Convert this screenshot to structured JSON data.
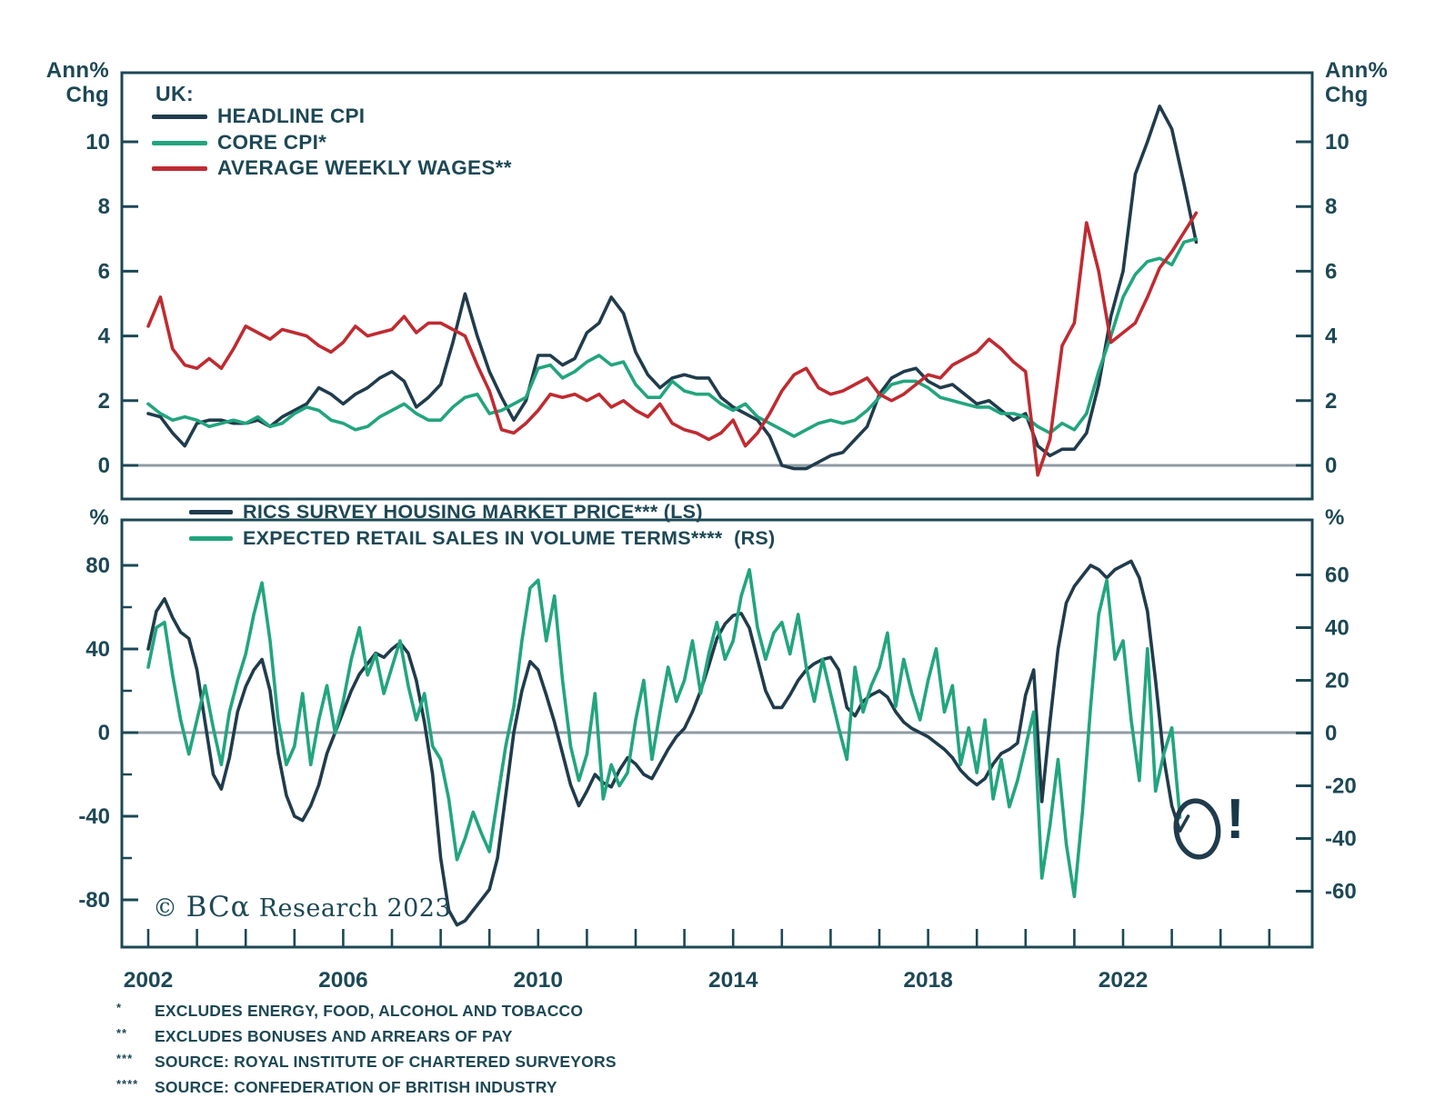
{
  "colors": {
    "text": "#1d4855",
    "navy": "#203c4c",
    "green": "#22a57e",
    "red": "#bf2b31",
    "zero_line": "#8f9ba3",
    "frame": "#1d4855"
  },
  "top_panel": {
    "axis_unit": {
      "line1": "Ann%",
      "line2": "Chg"
    },
    "legend_title": "UK:",
    "legend": [
      {
        "label": "HEADLINE CPI",
        "color_key": "navy"
      },
      {
        "label": "CORE CPI*",
        "color_key": "green"
      },
      {
        "label": "AVERAGE WEEKLY WAGES**",
        "color_key": "red"
      }
    ],
    "y_ticks": [
      10,
      8,
      6,
      4,
      2,
      0
    ]
  },
  "bottom_panel": {
    "axis_unit": "%",
    "legend": [
      {
        "label": "RICS SURVEY HOUSING MARKET PRICE*** (LS)",
        "color_key": "navy"
      },
      {
        "label": "EXPECTED RETAIL SALES IN VOLUME TERMS****  (RS)",
        "color_key": "green"
      }
    ],
    "y_ticks_left": [
      80,
      40,
      0,
      -40,
      -80
    ],
    "y_minor_ticks_left": [
      60,
      20,
      -20,
      -60
    ],
    "y_ticks_right": [
      60,
      40,
      20,
      0,
      -20,
      -40,
      -60
    ],
    "watermark": {
      "prefix": "© ",
      "brand": "BCα",
      "suffix": " Research ",
      "year": "2023"
    },
    "annotation_label": "!"
  },
  "x_axis": {
    "labels": [
      2002,
      2006,
      2010,
      2014,
      2018,
      2022
    ],
    "minor_tick_year_start": 2002,
    "minor_tick_year_end": 2025
  },
  "footnotes": [
    {
      "marker": "*",
      "text": "EXCLUDES ENERGY, FOOD, ALCOHOL AND TOBACCO"
    },
    {
      "marker": "**",
      "text": "EXCLUDES BONUSES AND ARREARS OF PAY"
    },
    {
      "marker": "***",
      "text": "SOURCE: ROYAL INSTITUTE OF CHARTERED SURVEYORS"
    },
    {
      "marker": "****",
      "text": "SOURCE: CONFEDERATION OF BRITISH INDUSTRY"
    }
  ],
  "chart_data": [
    {
      "type": "line",
      "panel": "top",
      "title": "UK:",
      "ylabel": "Ann% Chg",
      "x_tick_labels": [
        2002,
        2006,
        2010,
        2014,
        2018,
        2022
      ],
      "ylim": [
        -1.2,
        12.1
      ],
      "y_ticks": [
        0,
        2,
        4,
        6,
        8,
        10
      ],
      "grid": false,
      "legend_position": "top-left",
      "series": [
        {
          "name": "HEADLINE CPI",
          "color": "#203c4c",
          "axis": "left",
          "x_start": 2002.0,
          "x_step": 0.25,
          "values": [
            1.6,
            1.5,
            1.0,
            0.6,
            1.3,
            1.4,
            1.4,
            1.3,
            1.3,
            1.4,
            1.2,
            1.5,
            1.7,
            1.9,
            2.4,
            2.2,
            1.9,
            2.2,
            2.4,
            2.7,
            2.9,
            2.6,
            1.8,
            2.1,
            2.5,
            3.8,
            5.3,
            4.0,
            2.9,
            2.1,
            1.4,
            2.0,
            3.4,
            3.4,
            3.1,
            3.3,
            4.1,
            4.4,
            5.2,
            4.7,
            3.5,
            2.8,
            2.4,
            2.7,
            2.8,
            2.7,
            2.7,
            2.1,
            1.8,
            1.6,
            1.4,
            0.9,
            0.0,
            -0.1,
            -0.1,
            0.1,
            0.3,
            0.4,
            0.8,
            1.2,
            2.2,
            2.7,
            2.9,
            3.0,
            2.6,
            2.4,
            2.5,
            2.2,
            1.9,
            2.0,
            1.7,
            1.4,
            1.6,
            0.6,
            0.3,
            0.5,
            0.5,
            1.0,
            2.5,
            4.6,
            6.0,
            9.0,
            10.0,
            11.1,
            10.4,
            8.7,
            6.9
          ]
        },
        {
          "name": "CORE CPI*",
          "color": "#22a57e",
          "axis": "left",
          "x_start": 2002.0,
          "x_step": 0.25,
          "values": [
            1.9,
            1.6,
            1.4,
            1.5,
            1.4,
            1.2,
            1.3,
            1.4,
            1.3,
            1.5,
            1.2,
            1.3,
            1.6,
            1.8,
            1.7,
            1.4,
            1.3,
            1.1,
            1.2,
            1.5,
            1.7,
            1.9,
            1.6,
            1.4,
            1.4,
            1.8,
            2.1,
            2.2,
            1.6,
            1.7,
            1.9,
            2.1,
            3.0,
            3.1,
            2.7,
            2.9,
            3.2,
            3.4,
            3.1,
            3.2,
            2.5,
            2.1,
            2.1,
            2.6,
            2.3,
            2.2,
            2.2,
            1.9,
            1.7,
            1.9,
            1.5,
            1.3,
            1.1,
            0.9,
            1.1,
            1.3,
            1.4,
            1.3,
            1.4,
            1.7,
            2.1,
            2.5,
            2.6,
            2.6,
            2.4,
            2.1,
            2.0,
            1.9,
            1.8,
            1.8,
            1.6,
            1.6,
            1.5,
            1.2,
            1.0,
            1.3,
            1.1,
            1.6,
            2.9,
            4.0,
            5.2,
            5.9,
            6.3,
            6.4,
            6.2,
            6.9,
            7.0
          ]
        },
        {
          "name": "AVERAGE WEEKLY WAGES**",
          "color": "#bf2b31",
          "axis": "left",
          "x_start": 2002.0,
          "x_step": 0.25,
          "values": [
            4.3,
            5.2,
            3.6,
            3.1,
            3.0,
            3.3,
            3.0,
            3.6,
            4.3,
            4.1,
            3.9,
            4.2,
            4.1,
            4.0,
            3.7,
            3.5,
            3.8,
            4.3,
            4.0,
            4.1,
            4.2,
            4.6,
            4.1,
            4.4,
            4.4,
            4.2,
            4.0,
            3.1,
            2.3,
            1.1,
            1.0,
            1.3,
            1.7,
            2.2,
            2.1,
            2.2,
            2.0,
            2.2,
            1.8,
            2.0,
            1.7,
            1.5,
            1.9,
            1.3,
            1.1,
            1.0,
            0.8,
            1.0,
            1.4,
            0.6,
            1.0,
            1.6,
            2.3,
            2.8,
            3.0,
            2.4,
            2.2,
            2.3,
            2.5,
            2.7,
            2.2,
            2.0,
            2.2,
            2.5,
            2.8,
            2.7,
            3.1,
            3.3,
            3.5,
            3.9,
            3.6,
            3.2,
            2.9,
            -0.3,
            0.8,
            3.7,
            4.4,
            7.5,
            6.0,
            3.8,
            4.1,
            4.4,
            5.2,
            6.1,
            6.6,
            7.2,
            7.8
          ]
        }
      ]
    },
    {
      "type": "line",
      "panel": "bottom",
      "ylabel_left": "%",
      "ylabel_right": "%",
      "ylim_left": [
        -101,
        102
      ],
      "ylim_right": [
        -81,
        81
      ],
      "y_ticks_left": [
        80,
        40,
        0,
        -40,
        -80
      ],
      "y_ticks_right": [
        60,
        40,
        20,
        0,
        -20,
        -40,
        -60
      ],
      "grid": false,
      "legend_position": "top-left",
      "annotation": {
        "type": "hand-drawn-circle",
        "target": "end of RICS series",
        "label": "!"
      },
      "series": [
        {
          "name": "RICS SURVEY HOUSING MARKET PRICE*** (LS)",
          "color": "#203c4c",
          "axis": "left",
          "x_start": 2002.0,
          "x_step": 0.166667,
          "values": [
            40,
            58,
            64,
            55,
            48,
            45,
            30,
            5,
            -20,
            -27,
            -12,
            10,
            22,
            30,
            35,
            20,
            -10,
            -30,
            -40,
            -42,
            -35,
            -25,
            -10,
            0,
            10,
            20,
            28,
            33,
            38,
            36,
            40,
            43,
            38,
            25,
            5,
            -20,
            -60,
            -85,
            -92,
            -90,
            -85,
            -80,
            -75,
            -60,
            -30,
            0,
            20,
            34,
            30,
            18,
            5,
            -10,
            -25,
            -35,
            -28,
            -20,
            -24,
            -26,
            -18,
            -12,
            -15,
            -20,
            -22,
            -15,
            -8,
            -2,
            2,
            10,
            20,
            32,
            45,
            52,
            56,
            57,
            50,
            35,
            20,
            12,
            12,
            18,
            25,
            30,
            33,
            35,
            36,
            30,
            12,
            8,
            15,
            18,
            20,
            17,
            10,
            5,
            2,
            0,
            -2,
            -5,
            -8,
            -12,
            -18,
            -22,
            -25,
            -22,
            -15,
            -10,
            -8,
            -5,
            18,
            30,
            -33,
            5,
            40,
            62,
            70,
            75,
            80,
            78,
            74,
            78,
            80,
            82,
            74,
            58,
            25,
            -12,
            -35,
            -47,
            -40
          ]
        },
        {
          "name": "EXPECTED RETAIL SALES IN VOLUME TERMS**** (RS)",
          "color": "#22a57e",
          "axis": "right",
          "x_start": 2002.0,
          "x_step": 0.166667,
          "values": [
            25,
            40,
            42,
            22,
            5,
            -8,
            5,
            18,
            2,
            -12,
            8,
            20,
            30,
            45,
            57,
            35,
            5,
            -12,
            -5,
            15,
            -12,
            5,
            18,
            0,
            12,
            28,
            40,
            22,
            30,
            15,
            25,
            35,
            18,
            5,
            15,
            -5,
            -10,
            -25,
            -48,
            -40,
            -30,
            -38,
            -45,
            -25,
            -5,
            10,
            35,
            55,
            58,
            35,
            52,
            20,
            -5,
            -18,
            -8,
            15,
            -25,
            -12,
            -20,
            -15,
            5,
            20,
            -10,
            8,
            25,
            12,
            20,
            35,
            15,
            30,
            42,
            28,
            35,
            52,
            62,
            40,
            28,
            38,
            42,
            30,
            45,
            25,
            12,
            28,
            15,
            2,
            -10,
            25,
            8,
            18,
            25,
            38,
            10,
            28,
            15,
            5,
            20,
            32,
            8,
            18,
            -12,
            2,
            -15,
            5,
            -25,
            -10,
            -28,
            -18,
            -5,
            8,
            -55,
            -35,
            -10,
            -42,
            -62,
            -30,
            10,
            45,
            58,
            28,
            35,
            5,
            -18,
            32,
            -22,
            -8,
            2,
            -32
          ]
        }
      ]
    }
  ]
}
